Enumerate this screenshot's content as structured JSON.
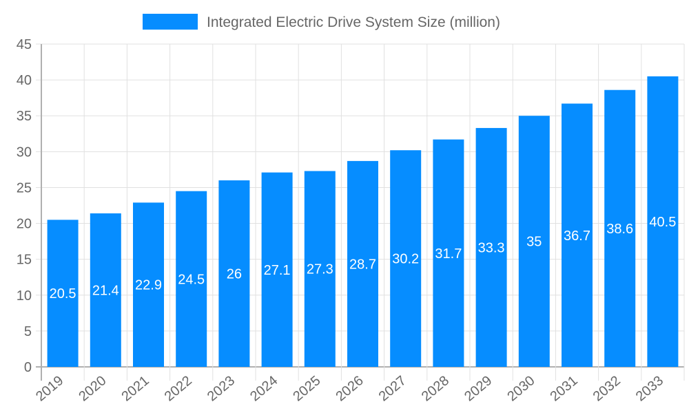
{
  "chart_data": {
    "type": "bar",
    "title": "",
    "xlabel": "",
    "ylabel": "",
    "legend": {
      "position": "top",
      "entries": [
        "Integrated Electric Drive System Size (million)"
      ]
    },
    "categories": [
      "2019",
      "2020",
      "2021",
      "2022",
      "2023",
      "2024",
      "2025",
      "2026",
      "2027",
      "2028",
      "2029",
      "2030",
      "2031",
      "2032",
      "2033"
    ],
    "series": [
      {
        "name": "Integrated Electric Drive System Size (million)",
        "values": [
          20.5,
          21.4,
          22.9,
          24.5,
          26,
          27.1,
          27.3,
          28.7,
          30.2,
          31.7,
          33.3,
          35,
          36.7,
          38.6,
          40.5
        ],
        "color": "#068dff"
      }
    ],
    "ylim": [
      0,
      45
    ],
    "yticks": [
      0,
      5,
      10,
      15,
      20,
      25,
      30,
      35,
      40,
      45
    ],
    "grid": true,
    "data_labels": true
  }
}
